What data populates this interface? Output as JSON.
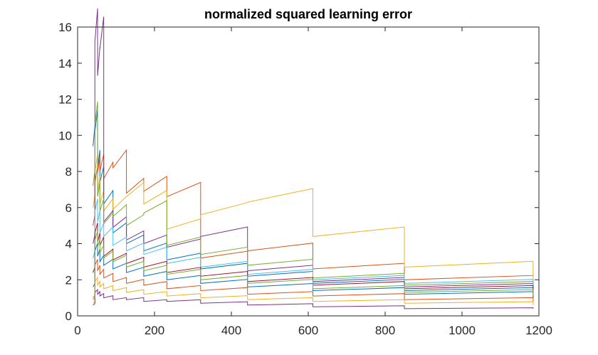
{
  "chart_data": {
    "type": "line",
    "title": "normalized squared learning error",
    "xlabel": "",
    "ylabel": "",
    "xlim": [
      0,
      1200
    ],
    "ylim": [
      0,
      16
    ],
    "xticks": [
      0,
      200,
      400,
      600,
      800,
      1000,
      1200
    ],
    "yticks": [
      0,
      2,
      4,
      6,
      8,
      10,
      12,
      14,
      16
    ],
    "grid": false,
    "legend": "none",
    "colors": [
      "#0072bd",
      "#d95319",
      "#edb120",
      "#7e2f8e",
      "#77ac30",
      "#4dbeee",
      "#a2142f"
    ],
    "segment_boundaries": [
      40,
      45,
      52,
      58,
      68,
      92,
      127,
      172,
      232,
      320,
      442,
      612,
      850,
      1185
    ],
    "series": [
      {
        "values": [
          [
            40,
            9.4
          ],
          [
            45,
            10.2
          ],
          [
            52,
            8.2
          ],
          [
            58,
            7.4
          ],
          [
            68,
            6.2
          ],
          [
            92,
            4.6
          ],
          [
            127,
            4.0
          ],
          [
            172,
            3.6
          ],
          [
            232,
            3.1
          ],
          [
            320,
            2.6
          ],
          [
            442,
            2.2
          ],
          [
            612,
            1.8
          ],
          [
            850,
            1.4
          ],
          [
            1185,
            1.2
          ]
        ]
      },
      {
        "values": [
          [
            40,
            5.0
          ],
          [
            45,
            7.4
          ],
          [
            52,
            7.9
          ],
          [
            58,
            8.0
          ],
          [
            68,
            7.6
          ],
          [
            92,
            8.2
          ],
          [
            127,
            6.8
          ],
          [
            172,
            6.9
          ],
          [
            232,
            6.6
          ],
          [
            320,
            3.2
          ],
          [
            442,
            3.6
          ],
          [
            612,
            2.6
          ],
          [
            850,
            2.0
          ],
          [
            1185,
            2.3
          ]
        ]
      },
      {
        "values": [
          [
            40,
            6.0
          ],
          [
            45,
            8.0
          ],
          [
            52,
            6.9
          ],
          [
            58,
            6.2
          ],
          [
            68,
            5.8
          ],
          [
            92,
            5.9
          ],
          [
            127,
            6.6
          ],
          [
            172,
            6.2
          ],
          [
            232,
            4.8
          ],
          [
            320,
            5.6
          ],
          [
            442,
            6.3
          ],
          [
            612,
            4.4
          ],
          [
            850,
            2.7
          ],
          [
            1185,
            1.8
          ]
        ]
      },
      {
        "values": [
          [
            40,
            4.0
          ],
          [
            45,
            15.2
          ],
          [
            52,
            13.3
          ],
          [
            58,
            14.8
          ],
          [
            68,
            5.2
          ],
          [
            92,
            4.9
          ],
          [
            127,
            4.2
          ],
          [
            172,
            4.0
          ],
          [
            232,
            3.8
          ],
          [
            320,
            4.4
          ],
          [
            442,
            2.5
          ],
          [
            612,
            1.9
          ],
          [
            850,
            1.6
          ],
          [
            1185,
            1.0
          ]
        ]
      },
      {
        "values": [
          [
            40,
            7.2
          ],
          [
            45,
            10.6
          ],
          [
            52,
            6.6
          ],
          [
            58,
            5.8
          ],
          [
            68,
            5.1
          ],
          [
            92,
            5.5
          ],
          [
            127,
            5.0
          ],
          [
            172,
            5.7
          ],
          [
            232,
            3.9
          ],
          [
            320,
            3.4
          ],
          [
            442,
            2.8
          ],
          [
            612,
            2.1
          ],
          [
            850,
            1.7
          ],
          [
            1185,
            1.3
          ]
        ]
      },
      {
        "values": [
          [
            40,
            3.2
          ],
          [
            45,
            5.8
          ],
          [
            52,
            5.2
          ],
          [
            58,
            4.6
          ],
          [
            68,
            4.4
          ],
          [
            92,
            3.9
          ],
          [
            127,
            3.6
          ],
          [
            172,
            3.4
          ],
          [
            232,
            2.9
          ],
          [
            320,
            2.7
          ],
          [
            442,
            2.3
          ],
          [
            612,
            2.0
          ],
          [
            850,
            1.8
          ],
          [
            1185,
            1.6
          ]
        ]
      },
      {
        "values": [
          [
            40,
            2.4
          ],
          [
            45,
            4.6
          ],
          [
            52,
            4.1
          ],
          [
            58,
            3.9
          ],
          [
            68,
            3.3
          ],
          [
            92,
            3.1
          ],
          [
            127,
            2.9
          ],
          [
            172,
            2.7
          ],
          [
            232,
            2.4
          ],
          [
            320,
            2.2
          ],
          [
            442,
            1.9
          ],
          [
            612,
            1.7
          ],
          [
            850,
            1.5
          ],
          [
            1185,
            1.4
          ]
        ]
      },
      {
        "values": [
          [
            40,
            1.6
          ],
          [
            45,
            3.6
          ],
          [
            52,
            3.3
          ],
          [
            58,
            3.0
          ],
          [
            68,
            2.8
          ],
          [
            92,
            2.6
          ],
          [
            127,
            2.4
          ],
          [
            172,
            2.2
          ],
          [
            232,
            2.0
          ],
          [
            320,
            1.8
          ],
          [
            442,
            1.6
          ],
          [
            612,
            1.4
          ],
          [
            850,
            1.2
          ],
          [
            1185,
            1.0
          ]
        ]
      },
      {
        "values": [
          [
            40,
            1.0
          ],
          [
            45,
            2.8
          ],
          [
            52,
            2.5
          ],
          [
            58,
            2.3
          ],
          [
            68,
            2.1
          ],
          [
            92,
            1.9
          ],
          [
            127,
            1.8
          ],
          [
            172,
            1.7
          ],
          [
            232,
            1.5
          ],
          [
            320,
            1.4
          ],
          [
            442,
            1.2
          ],
          [
            612,
            1.1
          ],
          [
            850,
            0.9
          ],
          [
            1185,
            0.8
          ]
        ]
      },
      {
        "values": [
          [
            40,
            0.7
          ],
          [
            45,
            1.9
          ],
          [
            52,
            1.7
          ],
          [
            58,
            1.6
          ],
          [
            68,
            1.5
          ],
          [
            92,
            1.4
          ],
          [
            127,
            1.3
          ],
          [
            172,
            1.2
          ],
          [
            232,
            1.1
          ],
          [
            320,
            1.0
          ],
          [
            442,
            0.9
          ],
          [
            612,
            0.8
          ],
          [
            850,
            0.7
          ],
          [
            1185,
            0.6
          ]
        ]
      },
      {
        "values": [
          [
            40,
            0.6
          ],
          [
            45,
            1.3
          ],
          [
            52,
            1.2
          ],
          [
            58,
            1.1
          ],
          [
            68,
            1.0
          ],
          [
            92,
            0.9
          ],
          [
            127,
            0.9
          ],
          [
            172,
            0.8
          ],
          [
            232,
            0.8
          ],
          [
            320,
            0.7
          ],
          [
            442,
            0.6
          ],
          [
            612,
            0.5
          ],
          [
            850,
            0.4
          ],
          [
            1185,
            0.4
          ]
        ]
      },
      {
        "values": [
          [
            40,
            0.9
          ],
          [
            45,
            4.2
          ],
          [
            52,
            3.8
          ],
          [
            58,
            3.5
          ],
          [
            68,
            3.2
          ],
          [
            92,
            3.0
          ],
          [
            127,
            2.7
          ],
          [
            172,
            2.5
          ],
          [
            232,
            2.3
          ],
          [
            320,
            2.0
          ],
          [
            442,
            1.8
          ],
          [
            612,
            1.5
          ],
          [
            850,
            1.3
          ],
          [
            1185,
            1.1
          ]
        ]
      }
    ]
  }
}
